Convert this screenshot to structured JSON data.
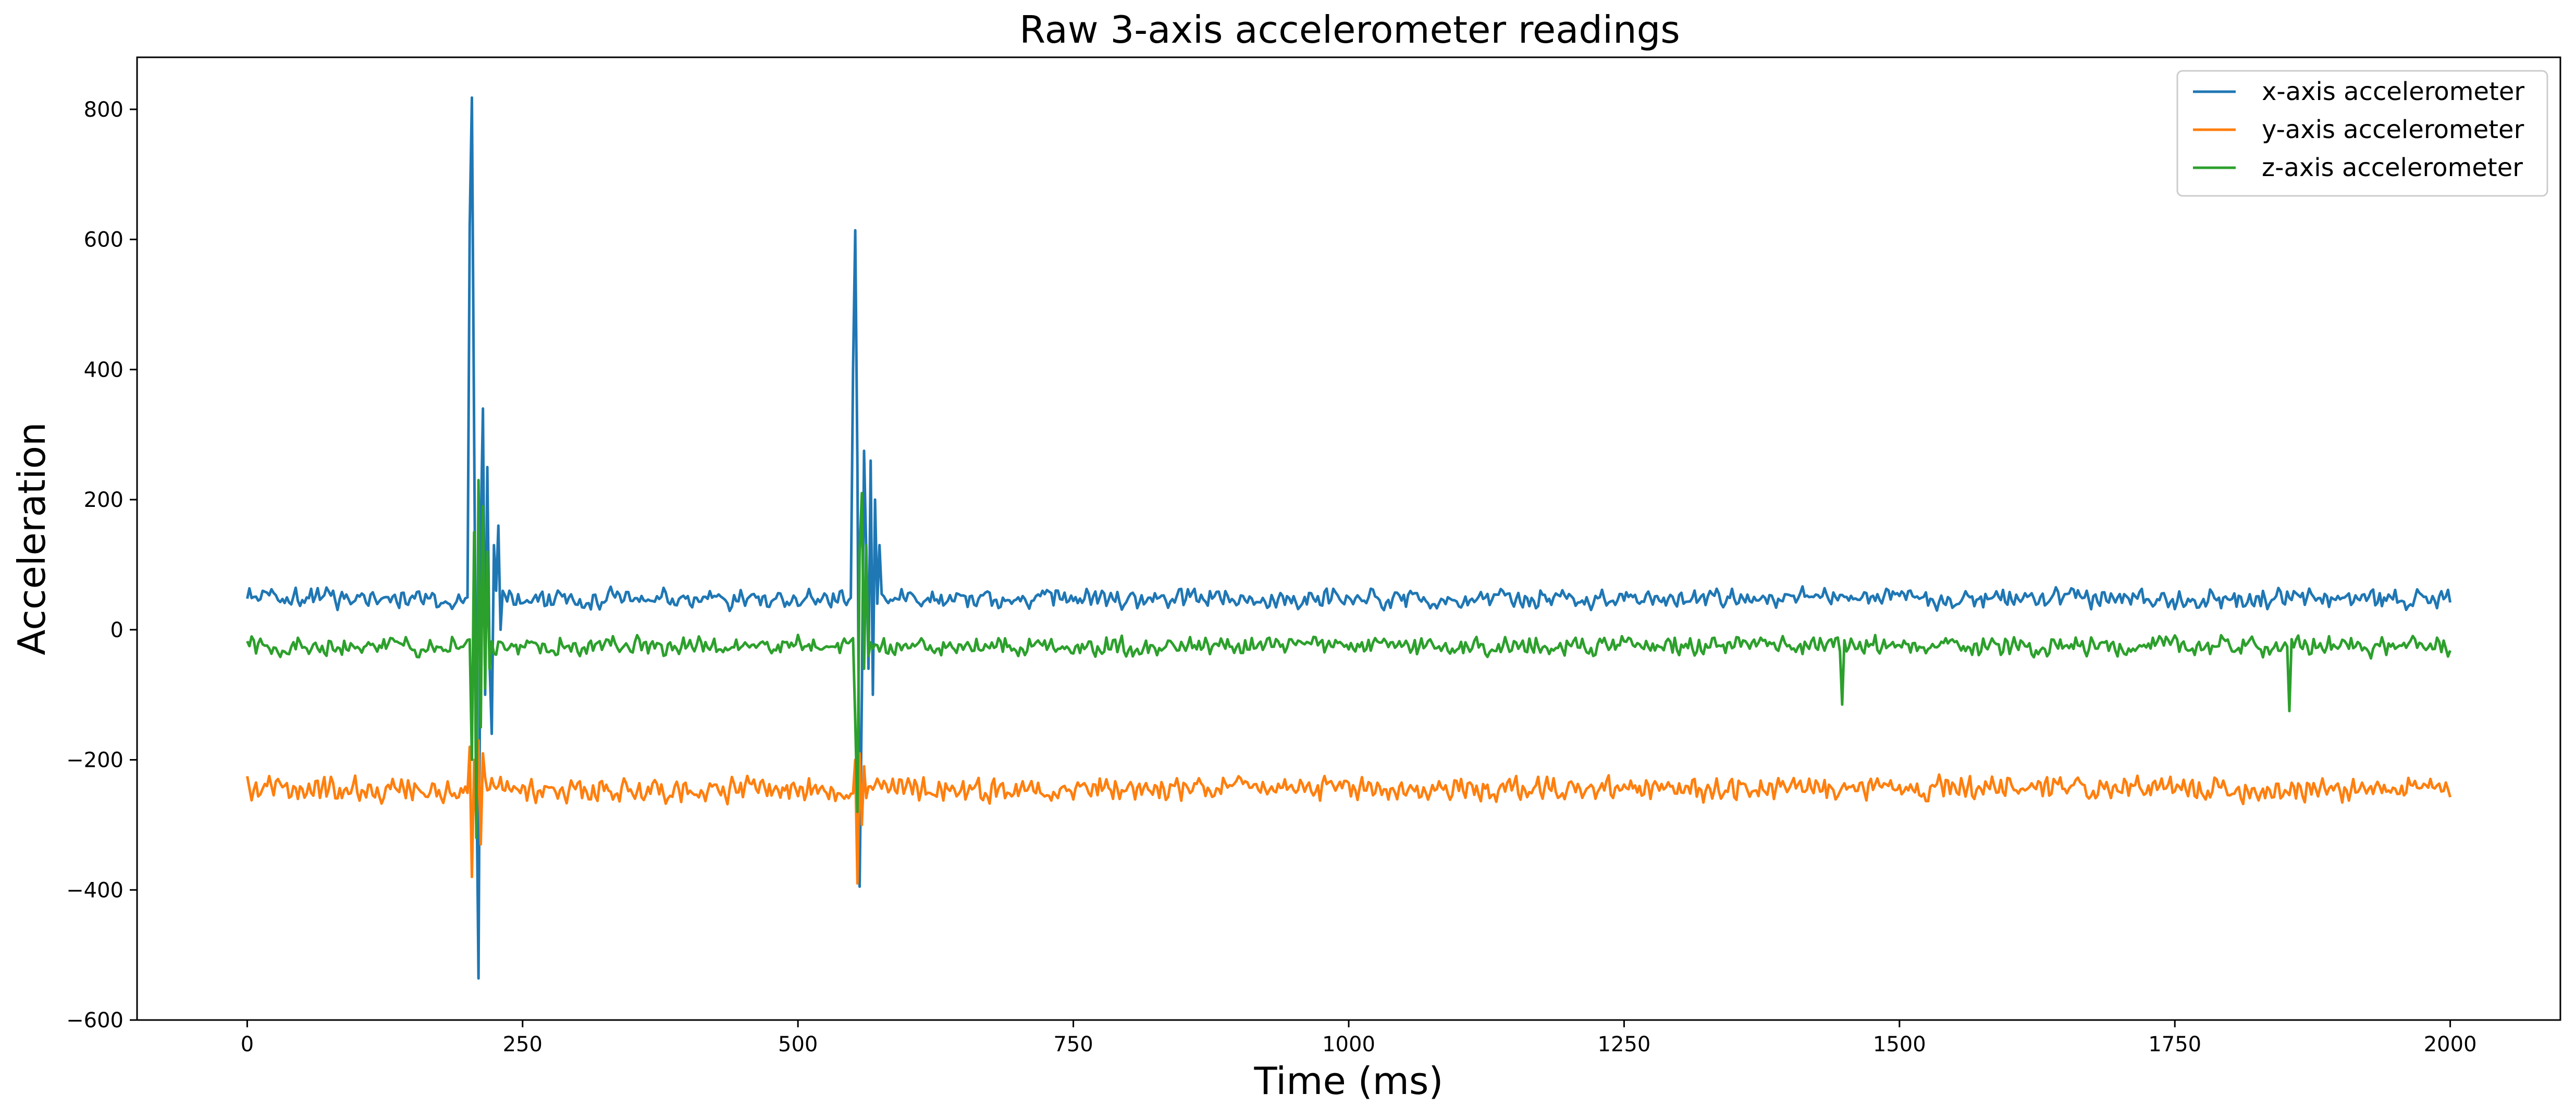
{
  "chart_data": {
    "type": "line",
    "title": "Raw 3-axis accelerometer readings",
    "xlabel": "Time (ms)",
    "ylabel": "Acceleration",
    "xlim": [
      -100,
      2100
    ],
    "ylim": [
      -600,
      880
    ],
    "xticks": [
      0,
      250,
      500,
      750,
      1000,
      1250,
      1500,
      1750,
      2000
    ],
    "yticks": [
      -600,
      -400,
      -200,
      0,
      200,
      400,
      600,
      800
    ],
    "xtick_labels": [
      "0",
      "250",
      "500",
      "750",
      "1000",
      "1250",
      "1500",
      "1750",
      "2000"
    ],
    "ytick_labels": [
      "−600",
      "−400",
      "−200",
      "0",
      "200",
      "400",
      "600",
      "800"
    ],
    "grid": false,
    "legend": "top-right",
    "x_range": [
      0,
      2000
    ],
    "sample_interval_ms": 2,
    "series": [
      {
        "name": "x-axis accelerometer",
        "color": "#1f77b4",
        "baseline": 48,
        "noise_amplitude": 16,
        "events": [
          {
            "t": 202,
            "values": [
              620,
              818,
              300,
              -200,
              -536,
              150,
              340,
              -100,
              250,
              -50,
              -160,
              130,
              60,
              160,
              0
            ]
          },
          {
            "t": 550,
            "values": [
              400,
              614,
              250,
              -395,
              -100,
              275,
              120,
              -60,
              260,
              -100,
              200,
              40,
              130
            ]
          }
        ]
      },
      {
        "name": "y-axis accelerometer",
        "color": "#ff7f0e",
        "baseline": -245,
        "noise_amplitude": 20,
        "events": [
          {
            "t": 202,
            "values": [
              -180,
              -380,
              -200,
              -300,
              -170,
              -330,
              -190
            ]
          },
          {
            "t": 552,
            "values": [
              -200,
              -390,
              -190,
              -300,
              -210
            ]
          }
        ]
      },
      {
        "name": "z-axis accelerometer",
        "color": "#2ca02c",
        "baseline": -25,
        "noise_amplitude": 16,
        "events": [
          {
            "t": 204,
            "values": [
              -200,
              150,
              -320,
              230,
              -150,
              190,
              -90,
              120,
              -60
            ]
          },
          {
            "t": 552,
            "values": [
              -140,
              -280,
              120,
              210,
              -60,
              130,
              -40
            ]
          },
          {
            "t": 1448,
            "values": [
              -115
            ]
          },
          {
            "t": 1854,
            "values": [
              -125
            ]
          }
        ]
      }
    ]
  }
}
